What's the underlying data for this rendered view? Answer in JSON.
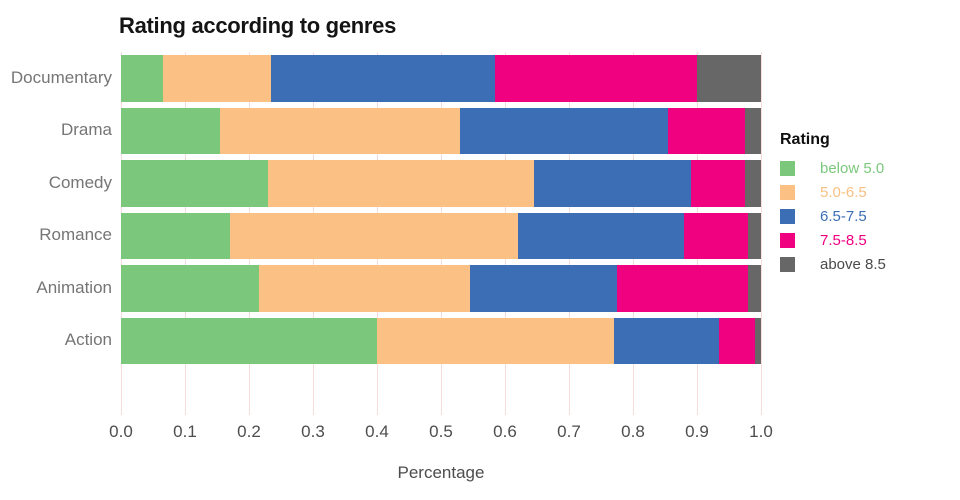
{
  "chart_data": {
    "type": "bar",
    "orientation": "horizontal",
    "stacked": true,
    "title": "Rating according to genres",
    "xlabel": "Percentage",
    "ylabel": "",
    "xlim": [
      0.0,
      1.0
    ],
    "x_ticks": [
      "0.0",
      "0.1",
      "0.2",
      "0.3",
      "0.4",
      "0.5",
      "0.6",
      "0.7",
      "0.8",
      "0.9",
      "1.0"
    ],
    "categories": [
      "Documentary",
      "Drama",
      "Comedy",
      "Romance",
      "Animation",
      "Action"
    ],
    "grid": {
      "show": true,
      "color": "#F7DCDC"
    },
    "legend": {
      "title": "Rating",
      "position": "right"
    },
    "series": [
      {
        "name": "below 5.0",
        "color": "#7BC87C",
        "label_color": "#7BC87C",
        "values": [
          0.065,
          0.155,
          0.23,
          0.17,
          0.215,
          0.4
        ]
      },
      {
        "name": "5.0-6.5",
        "color": "#FBC083",
        "label_color": "#FBC083",
        "values": [
          0.17,
          0.375,
          0.415,
          0.45,
          0.33,
          0.37
        ]
      },
      {
        "name": "6.5-7.5",
        "color": "#3B6EB4",
        "label_color": "#3B6EB4",
        "values": [
          0.35,
          0.325,
          0.245,
          0.26,
          0.23,
          0.165
        ]
      },
      {
        "name": "7.5-8.5",
        "color": "#EF0180",
        "label_color": "#EF0180",
        "values": [
          0.315,
          0.12,
          0.085,
          0.1,
          0.205,
          0.055
        ]
      },
      {
        "name": "above 8.5",
        "color": "#676767",
        "label_color": "#4a4a4a",
        "values": [
          0.1,
          0.025,
          0.025,
          0.02,
          0.02,
          0.01
        ]
      }
    ]
  }
}
